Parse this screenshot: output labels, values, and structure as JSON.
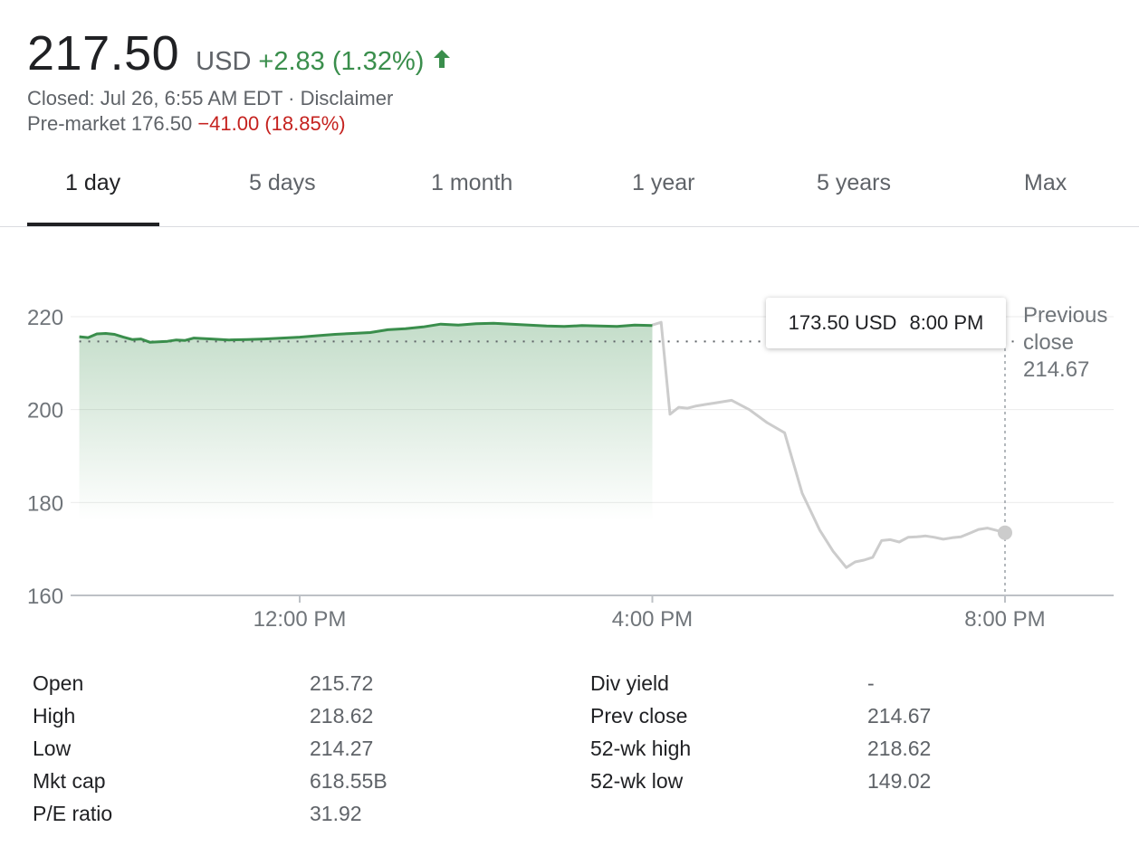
{
  "quote": {
    "price": "217.50",
    "currency": "USD",
    "change": "+2.83 (1.32%)",
    "closed_line": "Closed: Jul 26, 6:55 AM EDT · Disclaimer",
    "premarket_label": "Pre-market 176.50",
    "premarket_change": "−41.00 (18.85%)"
  },
  "colors": {
    "positive": "#3a8e4c",
    "negative": "#c5221f",
    "afterhours": "#cccccc"
  },
  "tabs": [
    "1 day",
    "5 days",
    "1 month",
    "1 year",
    "5 years",
    "Max"
  ],
  "active_tab": "1 day",
  "tooltip": {
    "price": "173.50 USD",
    "time": "8:00 PM"
  },
  "previous_close": {
    "line1": "Previous",
    "line2": "close",
    "value": "214.67"
  },
  "chart_data": {
    "type": "line",
    "ylim": [
      160,
      222
    ],
    "yticks": [
      "220",
      "200",
      "180",
      "160"
    ],
    "xticks": [
      "12:00 PM",
      "4:00 PM",
      "8:00 PM"
    ],
    "xtick_hours": [
      12,
      16,
      20
    ],
    "x_range_hours": [
      9.5,
      21.2
    ],
    "previous_close": 214.67,
    "grid": true,
    "series": [
      {
        "session": "regular",
        "x": [
          9.5,
          9.6,
          9.7,
          9.8,
          9.9,
          10,
          10.1,
          10.2,
          10.3,
          10.4,
          10.5,
          10.6,
          10.7,
          10.8,
          10.9,
          11,
          11.2,
          11.4,
          11.6,
          11.8,
          12,
          12.2,
          12.4,
          12.6,
          12.8,
          13,
          13.2,
          13.4,
          13.6,
          13.8,
          14,
          14.2,
          14.4,
          14.6,
          14.8,
          15,
          15.2,
          15.4,
          15.6,
          15.8,
          16
        ],
        "values": [
          215.7,
          215.5,
          216.3,
          216.4,
          216.2,
          215.6,
          215.1,
          215.2,
          214.5,
          214.6,
          214.7,
          215,
          214.9,
          215.4,
          215.3,
          215.2,
          215,
          215.1,
          215.2,
          215.4,
          215.6,
          215.9,
          216.2,
          216.4,
          216.6,
          217.2,
          217.4,
          217.8,
          218.4,
          218.2,
          218.5,
          218.6,
          218.4,
          218.2,
          218,
          217.9,
          218.1,
          218,
          217.9,
          218.2,
          218.1
        ]
      },
      {
        "session": "after-hours",
        "x": [
          16,
          16.1,
          16.2,
          16.3,
          16.4,
          16.5,
          16.6,
          16.7,
          16.9,
          17.1,
          17.3,
          17.5,
          17.7,
          17.9,
          18.05,
          18.2,
          18.3,
          18.4,
          18.5,
          18.6,
          18.7,
          18.8,
          18.9,
          19,
          19.1,
          19.2,
          19.3,
          19.4,
          19.5,
          19.6,
          19.7,
          19.8,
          19.9,
          20
        ],
        "values": [
          218.2,
          218.8,
          199,
          200.5,
          200.3,
          200.8,
          201.1,
          201.4,
          202,
          200,
          197.2,
          195,
          182,
          174,
          169.5,
          166,
          167.2,
          167.6,
          168.2,
          171.8,
          172,
          171.5,
          172.5,
          172.6,
          172.8,
          172.5,
          172.1,
          172.4,
          172.6,
          173.4,
          174.2,
          174.5,
          174.0,
          173.5
        ]
      }
    ]
  },
  "stats": {
    "left": [
      {
        "label": "Open",
        "value": "215.72"
      },
      {
        "label": "High",
        "value": "218.62"
      },
      {
        "label": "Low",
        "value": "214.27"
      },
      {
        "label": "Mkt cap",
        "value": "618.55B"
      },
      {
        "label": "P/E ratio",
        "value": "31.92"
      }
    ],
    "right": [
      {
        "label": "Div yield",
        "value": "-"
      },
      {
        "label": "Prev close",
        "value": "214.67"
      },
      {
        "label": "52-wk high",
        "value": "218.62"
      },
      {
        "label": "52-wk low",
        "value": "149.02"
      }
    ]
  }
}
